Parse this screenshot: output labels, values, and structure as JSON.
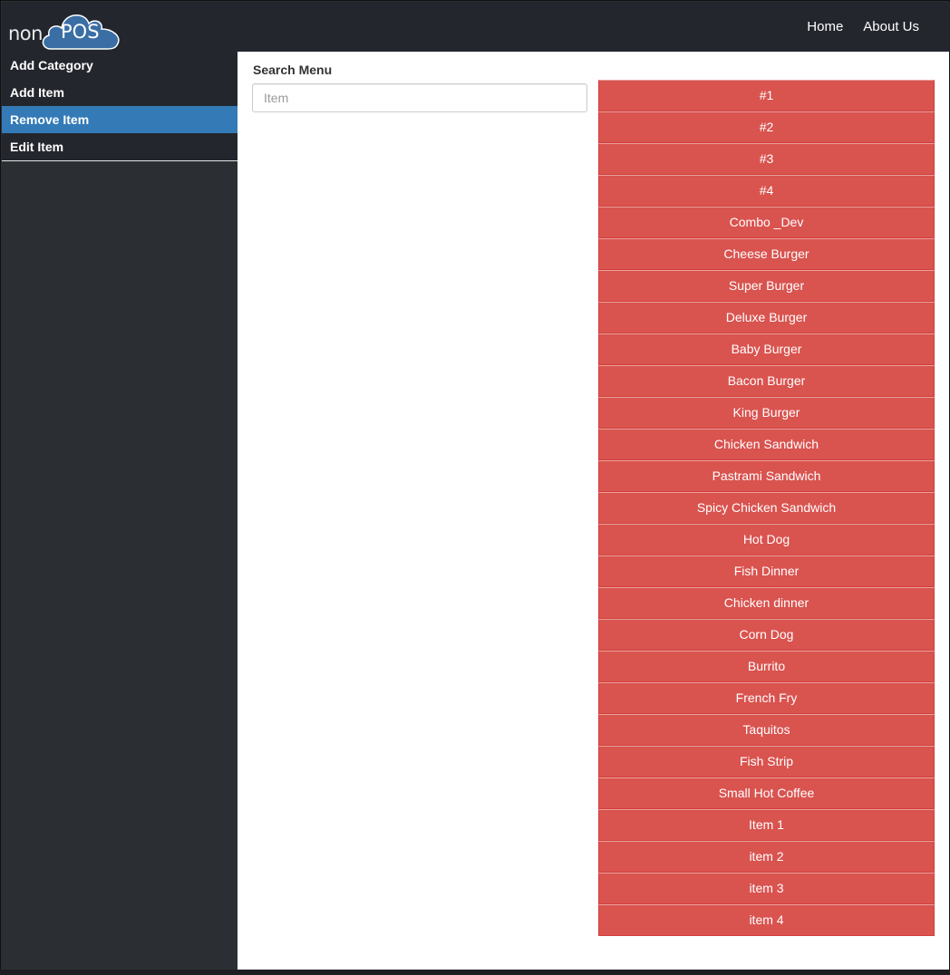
{
  "header": {
    "logo_text_left": "non",
    "logo_text_right": "POS",
    "nav": [
      {
        "label": "Home"
      },
      {
        "label": "About Us"
      }
    ]
  },
  "sidebar": {
    "items": [
      {
        "label": "Add Category",
        "active": false
      },
      {
        "label": "Add Item",
        "active": false
      },
      {
        "label": "Remove Item",
        "active": true
      },
      {
        "label": "Edit Item",
        "active": false
      }
    ]
  },
  "main": {
    "search_label": "Search Menu",
    "search_placeholder": "Item",
    "search_value": "",
    "items": [
      "#1",
      "#2",
      "#3",
      "#4",
      "Combo _Dev",
      "Cheese Burger",
      "Super Burger",
      "Deluxe Burger",
      "Baby Burger",
      "Bacon Burger",
      "King Burger",
      "Chicken Sandwich",
      "Pastrami Sandwich",
      "Spicy Chicken Sandwich",
      "Hot Dog",
      "Fish Dinner",
      "Chicken dinner",
      "Corn Dog",
      "Burrito",
      "French Fry",
      "Taquitos",
      "Fish Strip",
      "Small Hot Coffee",
      "Item 1",
      "item 2",
      "item 3",
      "item 4"
    ]
  },
  "colors": {
    "accent": "#337ab7",
    "danger": "#d9534f",
    "topbar": "#23262d",
    "sidebar": "#2b2e33"
  }
}
